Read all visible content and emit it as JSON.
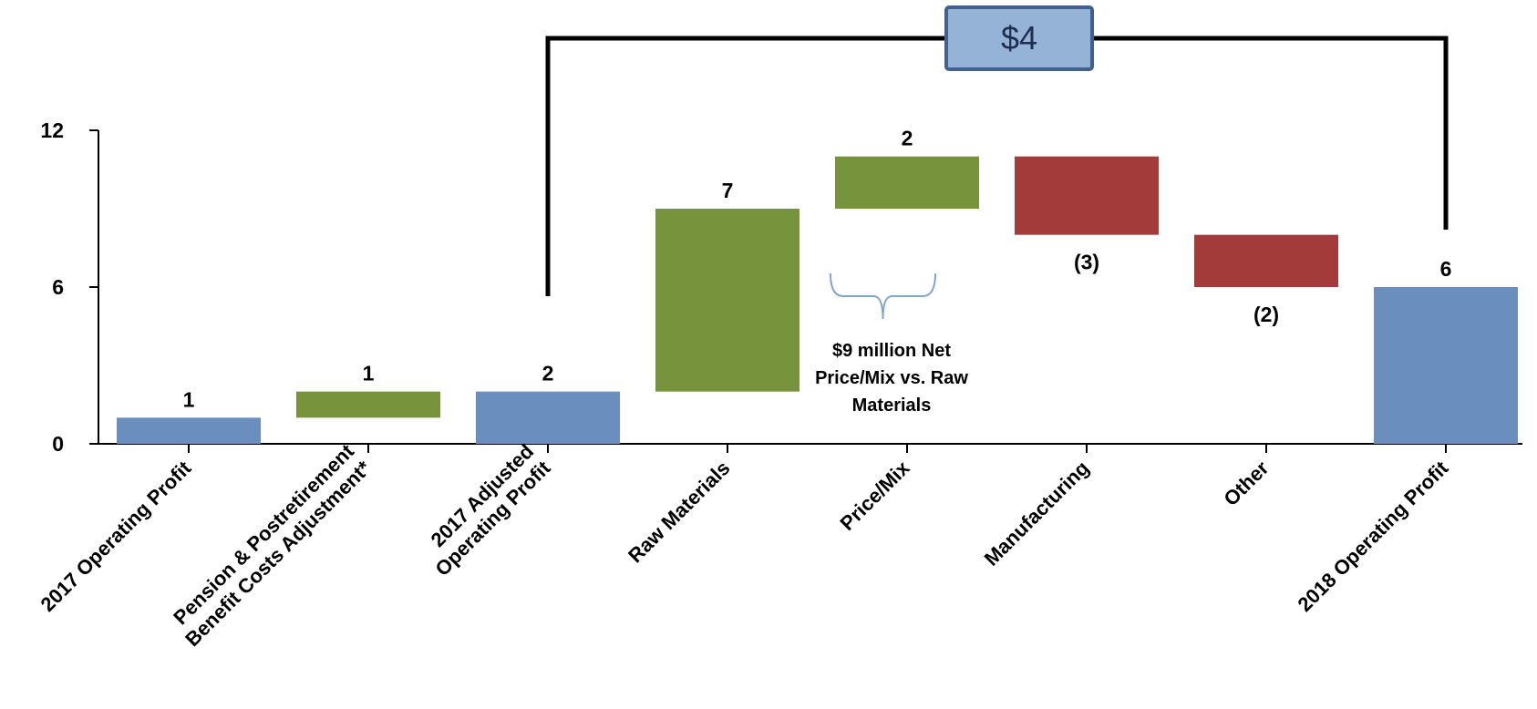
{
  "chart_data": {
    "type": "waterfall",
    "y_ticks": [
      "0",
      "6",
      "12"
    ],
    "ylim": [
      0,
      12
    ],
    "grid": false,
    "colors": {
      "total": "#6a8fbf",
      "increase": "#77933c",
      "decrease": "#a33b3b",
      "bracket_box_fill": "#95b3d7",
      "bracket_box_border": "#41618c"
    },
    "categories": [
      {
        "label_lines": [
          "2017 Operating Profit"
        ],
        "kind": "total",
        "start": 0,
        "end": 1,
        "value_label": "1"
      },
      {
        "label_lines": [
          "Pension & Postretirement",
          "Benefit Costs Adjustment*"
        ],
        "kind": "increase",
        "start": 1,
        "end": 2,
        "value_label": "1"
      },
      {
        "label_lines": [
          "2017 Adjusted",
          "Operating Profit"
        ],
        "kind": "total",
        "start": 0,
        "end": 2,
        "value_label": "2"
      },
      {
        "label_lines": [
          "Raw Materials"
        ],
        "kind": "increase",
        "start": 2,
        "end": 9,
        "value_label": "7"
      },
      {
        "label_lines": [
          "Price/Mix"
        ],
        "kind": "increase",
        "start": 9,
        "end": 11,
        "value_label": "2"
      },
      {
        "label_lines": [
          "Manufacturing"
        ],
        "kind": "decrease",
        "start": 11,
        "end": 8,
        "value_label": "(3)"
      },
      {
        "label_lines": [
          "Other"
        ],
        "kind": "decrease",
        "start": 8,
        "end": 6,
        "value_label": "(2)"
      },
      {
        "label_lines": [
          "2018 Operating Profit"
        ],
        "kind": "total",
        "start": 0,
        "end": 6,
        "value_label": "6"
      }
    ],
    "bracket": {
      "label": "$4",
      "from_category": 2,
      "to_category": 7
    },
    "annotation": {
      "lines": [
        "$9 million Net",
        "Price/Mix vs. Raw",
        "Materials"
      ],
      "spans_categories": [
        3,
        4
      ]
    }
  }
}
